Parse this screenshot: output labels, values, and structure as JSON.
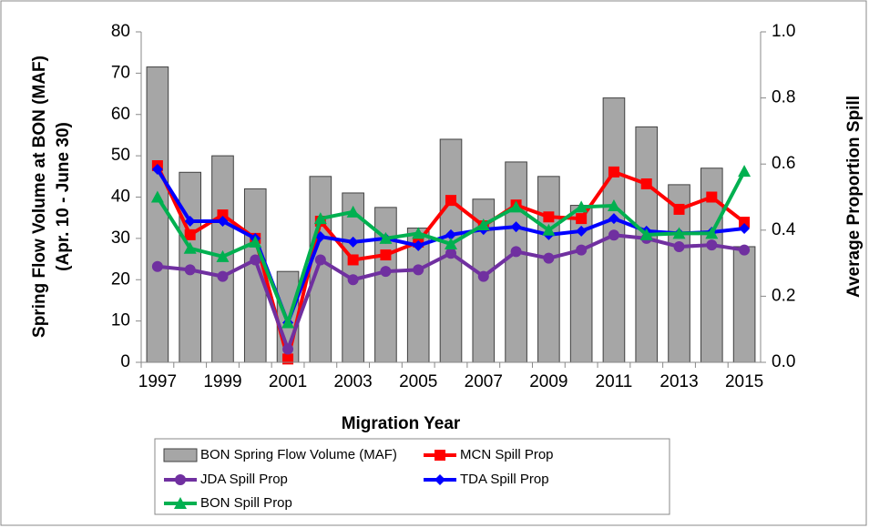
{
  "chart_data": {
    "type": "bar",
    "xlabel": "Migration Year",
    "ylabel": [
      "Spring Flow Volume at BON (MAF)",
      "(Apr. 10 - June 30)"
    ],
    "y2label": "Average Proportion Spill",
    "categories": [
      "1997",
      null,
      "1999",
      null,
      "2001",
      null,
      "2003",
      null,
      "2005",
      null,
      "2007",
      null,
      "2009",
      null,
      "2011",
      null,
      "2013",
      null,
      "2015"
    ],
    "ylim": [
      0,
      80
    ],
    "yticks": [
      0,
      10,
      20,
      30,
      40,
      50,
      60,
      70,
      80
    ],
    "y2lim": [
      0,
      1
    ],
    "y2ticks": [
      {
        "value": 0,
        "label": "0.0"
      },
      {
        "value": 0.2,
        "label": "0.2"
      },
      {
        "value": 0.4,
        "label": "0.4"
      },
      {
        "value": 0.6,
        "label": "0.6"
      },
      {
        "value": 0.8,
        "label": "0.8"
      },
      {
        "value": 1,
        "label": "1.0"
      }
    ],
    "grid": false,
    "series": [
      {
        "name": "BON Spring Flow Volume (MAF)",
        "type": "bar",
        "color": "#a6a6a6",
        "values": [
          71.5,
          46,
          50,
          42,
          22,
          45,
          41,
          37.5,
          32.5,
          54,
          39.5,
          48.5,
          45,
          38,
          64,
          57,
          43,
          47,
          28
        ]
      },
      {
        "name": "MCN Spill Prop",
        "type": "line",
        "axis": "y2",
        "color": "#ff0000",
        "marker": "square",
        "values": [
          0.595,
          0.386,
          0.446,
          0.375,
          0.01,
          0.427,
          0.31,
          0.325,
          0.364,
          0.49,
          0.413,
          0.476,
          0.44,
          0.435,
          0.576,
          0.54,
          0.463,
          0.5,
          0.424
        ]
      },
      {
        "name": "JDA Spill Prop",
        "type": "line",
        "axis": "y2",
        "color": "#7030a0",
        "marker": "circle",
        "values": [
          0.29,
          0.28,
          0.26,
          0.31,
          0.04,
          0.31,
          0.25,
          0.275,
          0.28,
          0.33,
          0.26,
          0.335,
          0.315,
          0.34,
          0.385,
          0.375,
          0.35,
          0.355,
          0.34
        ]
      },
      {
        "name": "TDA Spill Prop",
        "type": "line",
        "axis": "y2",
        "color": "#0000ff",
        "marker": "diamond",
        "values": [
          0.584,
          0.427,
          0.427,
          0.375,
          0.12,
          0.38,
          0.364,
          0.375,
          0.353,
          0.386,
          0.402,
          0.41,
          0.386,
          0.397,
          0.435,
          0.397,
          0.39,
          0.394,
          0.405
        ]
      },
      {
        "name": "BON Spill Prop",
        "type": "line",
        "axis": "y2",
        "color": "#00b050",
        "marker": "triangle",
        "values": [
          0.5,
          0.345,
          0.32,
          0.364,
          0.12,
          0.435,
          0.455,
          0.375,
          0.39,
          0.358,
          0.416,
          0.47,
          0.4,
          0.47,
          0.474,
          0.386,
          0.39,
          0.39,
          0.578
        ]
      }
    ]
  }
}
